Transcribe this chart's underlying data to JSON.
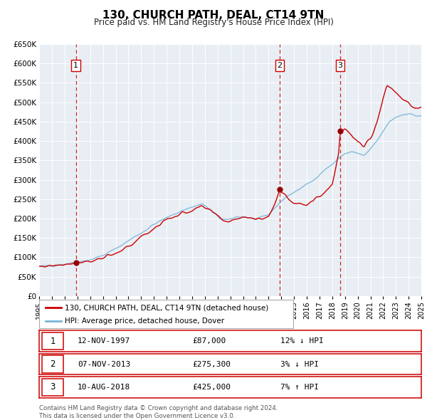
{
  "title": "130, CHURCH PATH, DEAL, CT14 9TN",
  "subtitle": "Price paid vs. HM Land Registry's House Price Index (HPI)",
  "legend_label_red": "130, CHURCH PATH, DEAL, CT14 9TN (detached house)",
  "legend_label_blue": "HPI: Average price, detached house, Dover",
  "transactions": [
    {
      "num": 1,
      "date": "12-NOV-1997",
      "price": 87000,
      "price_str": "£87,000",
      "pct": "12%",
      "dir": "↓",
      "x_year": 1997.87
    },
    {
      "num": 2,
      "date": "07-NOV-2013",
      "price": 275300,
      "price_str": "£275,300",
      "pct": "3%",
      "dir": "↓",
      "x_year": 2013.87
    },
    {
      "num": 3,
      "date": "10-AUG-2018",
      "price": 425000,
      "price_str": "£425,000",
      "pct": "7%",
      "dir": "↑",
      "x_year": 2018.62
    }
  ],
  "hpi_color": "#7ab4d8",
  "price_color": "#cc0000",
  "vline_color": "#cc0000",
  "dot_color": "#990000",
  "background_color": "#e8eef4",
  "grid_color": "#ffffff",
  "ylim": [
    0,
    650000
  ],
  "xlim": [
    1995.0,
    2025.0
  ],
  "yticks": [
    0,
    50000,
    100000,
    150000,
    200000,
    250000,
    300000,
    350000,
    400000,
    450000,
    500000,
    550000,
    600000,
    650000
  ],
  "xticks": [
    1995,
    1996,
    1997,
    1998,
    1999,
    2000,
    2001,
    2002,
    2003,
    2004,
    2005,
    2006,
    2007,
    2008,
    2009,
    2010,
    2011,
    2012,
    2013,
    2014,
    2015,
    2016,
    2017,
    2018,
    2019,
    2020,
    2021,
    2022,
    2023,
    2024,
    2025
  ],
  "footnote1": "Contains HM Land Registry data © Crown copyright and database right 2024.",
  "footnote2": "This data is licensed under the Open Government Licence v3.0.",
  "hpi_anchors_x": [
    1995.0,
    1996.0,
    1997.0,
    1998.0,
    1999.0,
    2000.0,
    2001.0,
    2002.0,
    2003.0,
    2004.0,
    2005.0,
    2006.0,
    2007.0,
    2007.8,
    2008.5,
    2009.2,
    2009.8,
    2010.5,
    2011.0,
    2011.5,
    2012.0,
    2012.5,
    2013.0,
    2013.5,
    2014.0,
    2014.5,
    2015.0,
    2015.5,
    2016.0,
    2016.5,
    2017.0,
    2017.5,
    2018.0,
    2018.5,
    2019.0,
    2019.5,
    2020.0,
    2020.5,
    2021.0,
    2021.5,
    2022.0,
    2022.5,
    2023.0,
    2023.5,
    2024.0,
    2024.5
  ],
  "hpi_anchors_y": [
    76000,
    79000,
    83000,
    88000,
    94000,
    105000,
    122000,
    143000,
    163000,
    185000,
    202000,
    218000,
    230000,
    238000,
    220000,
    200000,
    195000,
    205000,
    205000,
    202000,
    198000,
    202000,
    210000,
    228000,
    245000,
    258000,
    268000,
    278000,
    288000,
    298000,
    315000,
    328000,
    340000,
    355000,
    368000,
    372000,
    368000,
    362000,
    378000,
    400000,
    425000,
    450000,
    462000,
    468000,
    472000,
    465000
  ],
  "price_anchors_x": [
    1995.0,
    1996.0,
    1997.0,
    1997.87,
    1998.0,
    1999.0,
    2000.0,
    2001.0,
    2002.0,
    2003.0,
    2004.0,
    2005.0,
    2006.0,
    2007.0,
    2007.8,
    2008.5,
    2009.2,
    2009.8,
    2010.5,
    2011.0,
    2011.5,
    2012.0,
    2012.5,
    2013.0,
    2013.5,
    2013.87,
    2014.0,
    2014.5,
    2015.0,
    2015.5,
    2016.0,
    2016.5,
    2017.0,
    2017.5,
    2018.0,
    2018.5,
    2018.62,
    2019.0,
    2019.5,
    2020.0,
    2020.5,
    2021.0,
    2021.5,
    2022.0,
    2022.3,
    2022.7,
    2023.0,
    2023.5,
    2024.0,
    2024.5
  ],
  "price_anchors_y": [
    76000,
    79000,
    83000,
    87000,
    88000,
    90000,
    98000,
    108000,
    128000,
    152000,
    175000,
    198000,
    210000,
    222000,
    230000,
    218000,
    200000,
    192000,
    200000,
    205000,
    205000,
    198000,
    200000,
    205000,
    240000,
    275300,
    268000,
    252000,
    242000,
    240000,
    238000,
    245000,
    258000,
    272000,
    290000,
    370000,
    425000,
    430000,
    415000,
    395000,
    388000,
    408000,
    448000,
    510000,
    545000,
    535000,
    525000,
    510000,
    500000,
    482000
  ]
}
